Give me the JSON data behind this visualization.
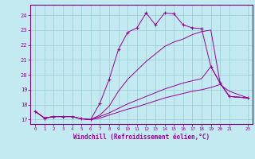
{
  "title": "",
  "xlabel": "Windchill (Refroidissement éolien,°C)",
  "ylabel": "",
  "bg_color": "#c2eaf0",
  "grid_color": "#a0d0d8",
  "line_color": "#990099",
  "spine_color": "#7a007a",
  "xlim": [
    -0.5,
    23.5
  ],
  "ylim": [
    16.7,
    24.7
  ],
  "xticks": [
    0,
    1,
    2,
    3,
    4,
    5,
    6,
    7,
    8,
    9,
    10,
    11,
    12,
    13,
    14,
    15,
    16,
    17,
    18,
    19,
    20,
    21,
    23
  ],
  "yticks": [
    17,
    18,
    19,
    20,
    21,
    22,
    23,
    24
  ],
  "curves": [
    {
      "x": [
        0,
        1,
        2,
        3,
        4,
        5,
        6,
        7,
        8,
        9,
        10,
        11,
        12,
        13,
        14,
        15,
        16,
        17,
        18,
        19,
        20,
        21,
        23
      ],
      "y": [
        17.55,
        17.1,
        17.2,
        17.2,
        17.2,
        17.05,
        17.0,
        18.1,
        19.7,
        21.7,
        22.85,
        23.15,
        24.15,
        23.35,
        24.15,
        24.1,
        23.35,
        23.15,
        23.1,
        20.55,
        19.45,
        18.55,
        18.45
      ],
      "marker": true
    },
    {
      "x": [
        0,
        1,
        2,
        3,
        4,
        5,
        6,
        7,
        8,
        9,
        10,
        11,
        12,
        13,
        14,
        15,
        16,
        17,
        18,
        19,
        20,
        21,
        23
      ],
      "y": [
        17.55,
        17.1,
        17.2,
        17.2,
        17.2,
        17.05,
        17.0,
        17.3,
        17.9,
        18.9,
        19.7,
        20.3,
        20.9,
        21.4,
        21.9,
        22.2,
        22.4,
        22.7,
        22.9,
        23.0,
        19.45,
        18.55,
        18.45
      ],
      "marker": false
    },
    {
      "x": [
        0,
        1,
        2,
        3,
        4,
        5,
        6,
        7,
        8,
        9,
        10,
        11,
        12,
        13,
        14,
        15,
        16,
        17,
        18,
        19,
        20,
        21,
        23
      ],
      "y": [
        17.55,
        17.1,
        17.2,
        17.2,
        17.2,
        17.05,
        17.0,
        17.2,
        17.45,
        17.75,
        18.05,
        18.3,
        18.55,
        18.8,
        19.05,
        19.25,
        19.45,
        19.6,
        19.75,
        20.55,
        19.45,
        18.55,
        18.45
      ],
      "marker": false
    },
    {
      "x": [
        0,
        1,
        2,
        3,
        4,
        5,
        6,
        7,
        8,
        9,
        10,
        11,
        12,
        13,
        14,
        15,
        16,
        17,
        18,
        19,
        20,
        21,
        23
      ],
      "y": [
        17.55,
        17.1,
        17.2,
        17.2,
        17.2,
        17.05,
        17.0,
        17.1,
        17.3,
        17.5,
        17.7,
        17.85,
        18.05,
        18.25,
        18.45,
        18.6,
        18.75,
        18.9,
        19.0,
        19.15,
        19.35,
        18.9,
        18.45
      ],
      "marker": false
    }
  ]
}
